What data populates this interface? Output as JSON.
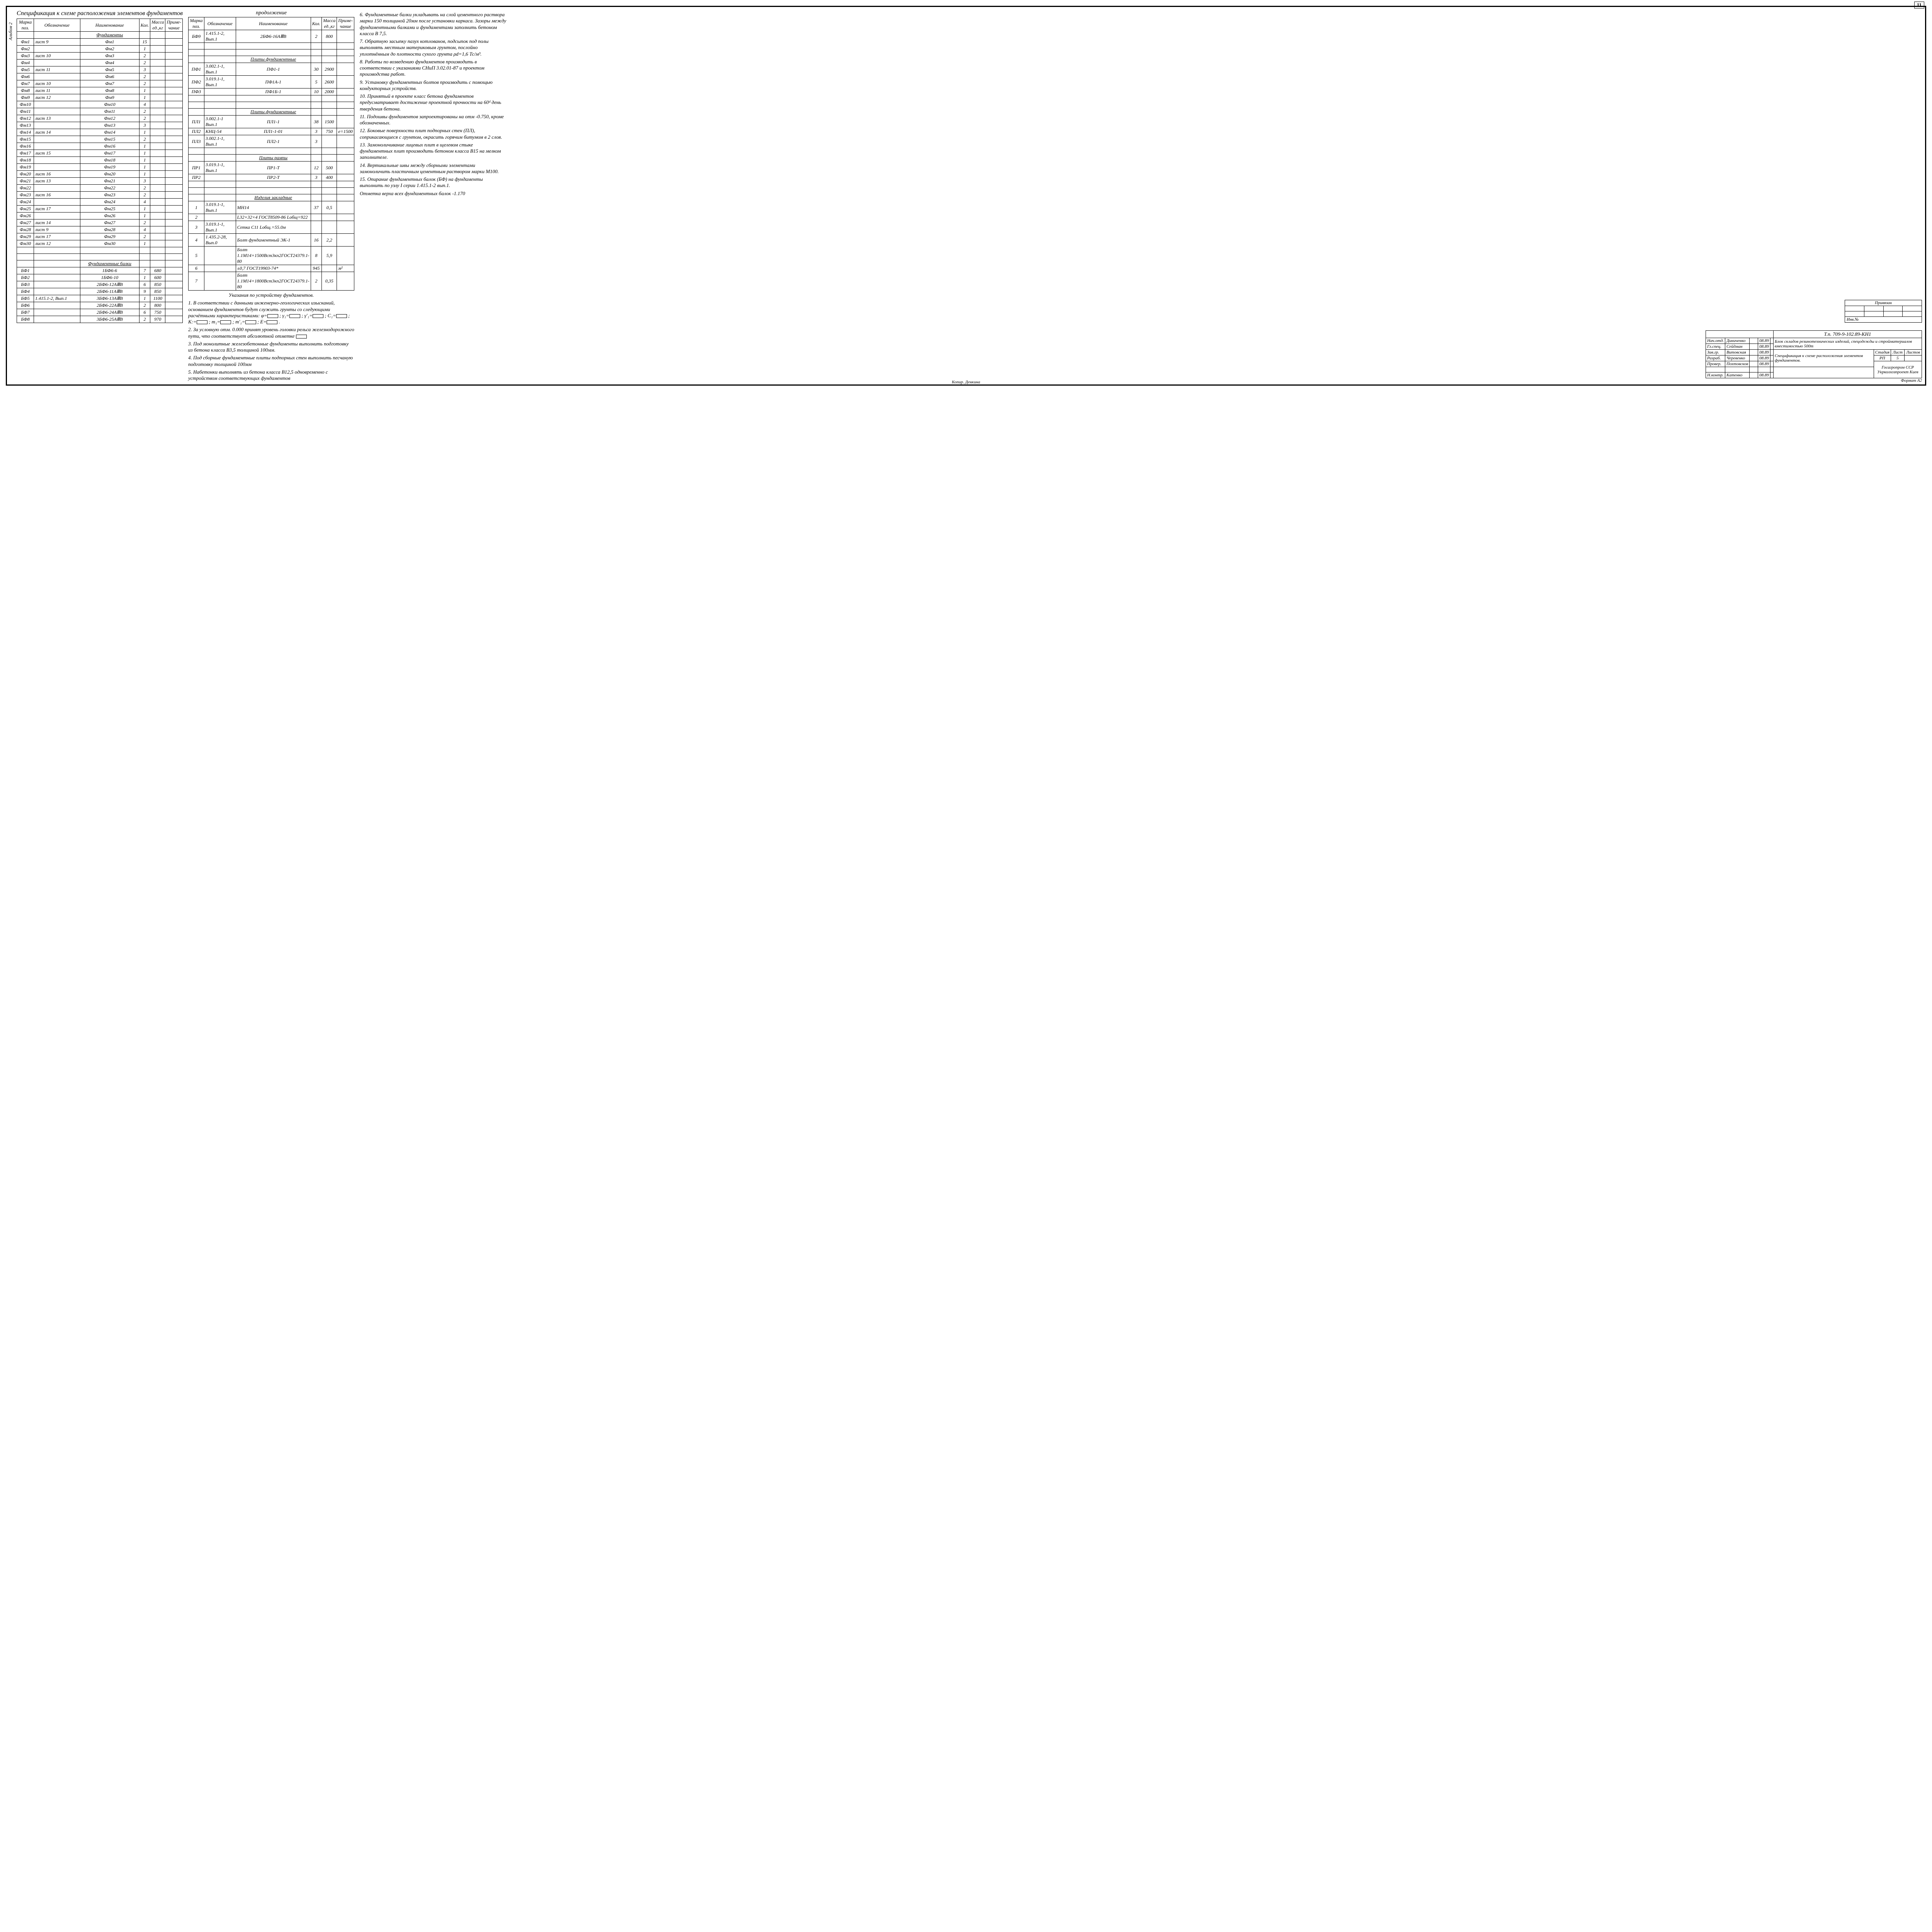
{
  "page_number": "11",
  "side_label": "Альбом 2",
  "main_title": "Спецификация к схеме расположения элементов фундаментов",
  "continuation": "продолжение",
  "headers": {
    "mark": "Марка поз.",
    "oboz": "Обозначение",
    "name": "Наименование",
    "kol": "Кол.",
    "massa": "Масса ед.,кг",
    "prim": "Приме-чание"
  },
  "sections": {
    "fund": "Фундаменты",
    "beams": "Фундаментные балки",
    "slabs_f": "Плиты фундаментные",
    "slabs_r": "Плиты рампы",
    "embed": "Изделия закладные"
  },
  "table1": [
    {
      "m": "Фм1",
      "o": "лист 9",
      "n": "Фм1",
      "k": "15"
    },
    {
      "m": "Фм2",
      "o": "",
      "n": "Фм2",
      "k": "1"
    },
    {
      "m": "Фм3",
      "o": "лист 10",
      "n": "Фм3",
      "k": "2"
    },
    {
      "m": "Фм4",
      "o": "",
      "n": "Фм4",
      "k": "2"
    },
    {
      "m": "Фм5",
      "o": "лист 11",
      "n": "Фм5",
      "k": "3"
    },
    {
      "m": "Фм6",
      "o": "",
      "n": "Фм6",
      "k": "2"
    },
    {
      "m": "Фм7",
      "o": "лист 10",
      "n": "Фм7",
      "k": "2"
    },
    {
      "m": "Фм8",
      "o": "лист 11",
      "n": "Фм8",
      "k": "1"
    },
    {
      "m": "Фм9",
      "o": "лист 12",
      "n": "Фм9",
      "k": "1"
    },
    {
      "m": "Фм10",
      "o": "",
      "n": "Фм10",
      "k": "4"
    },
    {
      "m": "Фм11",
      "o": "",
      "n": "Фм11",
      "k": "2"
    },
    {
      "m": "Фм12",
      "o": "лист 13",
      "n": "Фм12",
      "k": "2"
    },
    {
      "m": "Фм13",
      "o": "",
      "n": "Фм13",
      "k": "3"
    },
    {
      "m": "Фм14",
      "o": "лист 14",
      "n": "Фм14",
      "k": "1"
    },
    {
      "m": "Фм15",
      "o": "",
      "n": "Фм15",
      "k": "2"
    },
    {
      "m": "Фм16",
      "o": "",
      "n": "Фм16",
      "k": "1"
    },
    {
      "m": "Фм17",
      "o": "лист 15",
      "n": "Фм17",
      "k": "1"
    },
    {
      "m": "Фм18",
      "o": "",
      "n": "Фм18",
      "k": "1"
    },
    {
      "m": "Фм19",
      "o": "",
      "n": "Фм19",
      "k": "1"
    },
    {
      "m": "Фм20",
      "o": "лист 16",
      "n": "Фм20",
      "k": "1"
    },
    {
      "m": "Фм21",
      "o": "лист 13",
      "n": "Фм21",
      "k": "3"
    },
    {
      "m": "Фм22",
      "o": "",
      "n": "Фм22",
      "k": "2"
    },
    {
      "m": "Фм23",
      "o": "лист 16",
      "n": "Фм23",
      "k": "2"
    },
    {
      "m": "Фм24",
      "o": "",
      "n": "Фм24",
      "k": "4"
    },
    {
      "m": "Фм25",
      "o": "лист 17",
      "n": "Фм25",
      "k": "1"
    },
    {
      "m": "Фм26",
      "o": "",
      "n": "Фм26",
      "k": "1"
    },
    {
      "m": "Фм27",
      "o": "лист 14",
      "n": "Фм27",
      "k": "2"
    },
    {
      "m": "Фм28",
      "o": "лист 9",
      "n": "Фм28",
      "k": "4"
    },
    {
      "m": "Фм29",
      "o": "лист 17",
      "n": "Фм29",
      "k": "2"
    },
    {
      "m": "Фм30",
      "o": "лист 12",
      "n": "Фм30",
      "k": "1"
    }
  ],
  "table1_beams": [
    {
      "m": "БФ1",
      "o": "",
      "n": "1БФ6-6",
      "k": "7",
      "w": "680"
    },
    {
      "m": "БФ2",
      "o": "",
      "n": "1БФ6-10",
      "k": "1",
      "w": "600"
    },
    {
      "m": "БФ3",
      "o": "",
      "n": "2БФ6-12АⅢВ",
      "k": "6",
      "w": "850"
    },
    {
      "m": "БФ4",
      "o": "",
      "n": "2БФ6-11АⅢВ",
      "k": "9",
      "w": "850"
    },
    {
      "m": "БФ5",
      "o": "1.415.1-2, Вып.1",
      "n": "3БФ6-13АⅢВ",
      "k": "1",
      "w": "1100"
    },
    {
      "m": "БФ6",
      "o": "",
      "n": "2БФ6-22АⅢВ",
      "k": "2",
      "w": "800"
    },
    {
      "m": "БФ7",
      "o": "",
      "n": "2БФ6-24АⅢВ",
      "k": "6",
      "w": "750"
    },
    {
      "m": "БФ8",
      "o": "",
      "n": "3БФ6-25АⅢВ",
      "k": "2",
      "w": "970"
    }
  ],
  "table2_top": [
    {
      "m": "БФ9",
      "o": "1.415.1-2, Вып.1",
      "n": "2БФ6-16АⅢВ",
      "k": "2",
      "w": "800"
    }
  ],
  "table2_pf": [
    {
      "m": "ПФ1",
      "o": "3.002.1-1, Вып.1",
      "n": "ПФ1-1",
      "k": "30",
      "w": "2900"
    },
    {
      "m": "ПФ2",
      "o": "3.019.1-1, Вып.1",
      "n": "ПФ1А-1",
      "k": "5",
      "w": "2600"
    },
    {
      "m": "ПФ3",
      "o": "",
      "n": "ПФ1Б-1",
      "k": "10",
      "w": "2000"
    }
  ],
  "table2_pl": [
    {
      "m": "ПЛ1",
      "o": "3.002.1-1 Вып.1",
      "n": "ПЛ1-1",
      "k": "38",
      "w": "1500"
    },
    {
      "m": "ПЛ2",
      "o": "КНЦ-54",
      "n": "ПЛ1-1-01",
      "k": "3",
      "w": "750",
      "p": "e=1500"
    },
    {
      "m": "ПЛ3",
      "o": "3.002.1-1, Вып.1",
      "n": "ПЛ2-1",
      "k": "3",
      "w": ""
    }
  ],
  "table2_pr": [
    {
      "m": "ПР1",
      "o": "3.019.1-1, Вып.1",
      "n": "ПР1-Т",
      "k": "12",
      "w": "500"
    },
    {
      "m": "ПР2",
      "o": "",
      "n": "ПР2-Т",
      "k": "3",
      "w": "400"
    }
  ],
  "table2_emb": [
    {
      "m": "1",
      "o": "3.019.1-1, Вып.1",
      "n": "МН14",
      "k": "37",
      "w": "0,5"
    },
    {
      "m": "2",
      "o": "",
      "n": "L32×32×4 ГОСТ8509-86 Lобщ=922",
      "k": "",
      "w": ""
    },
    {
      "m": "3",
      "o": "3.019.1-1, Вып.1",
      "n": "Сетка С11 Lобщ.=55.0м",
      "k": "",
      "w": ""
    },
    {
      "m": "4",
      "o": "1.435.2-28, Вып.0",
      "n": "Болт фундаментный ЭК-1",
      "k": "16",
      "w": "2,2"
    },
    {
      "m": "5",
      "o": "",
      "n": "Болт 1.1М14×1500Вст3кп2ГОСТ24379.1-80",
      "k": "8",
      "w": "5,9"
    },
    {
      "m": "6",
      "o": "",
      "n": "±0,7 ГОСТ19903-74*",
      "k": "945",
      "w": "",
      "p": "м²"
    },
    {
      "m": "7",
      "o": "",
      "n": "Болт 1.1М14×1800Вст3кп2ГОСТ24379.1-80",
      "k": "2",
      "w": "0,35"
    }
  ],
  "notes_title": "Указания по устройству фундаментов.",
  "notes": [
    "1. В соответствии с данными инженерно-геологических изысканий, основанием фундаментов будут служить грунты со следующими расчётными характеристиками: φ=□ ; γ₁=□ ; γ'₁=□ ; C₁=□ ; K:=□ ; m₁=□ ; m'₁=□ ; E=□ .",
    "2. За условную отм. 0.000 принят уровень головки рельса железнодорожного пути, что соответствует абсолютной отметке □",
    "3. Под монолитные железобетонные фундаменты выполнить подготовку из бетона класса В3,5 толщиной 100мм.",
    "4. Под сборные фундаментные плиты подпорных стен выполнить песчаную подготовку толщиной 100мм",
    "5. Набетонки выполнять из бетона класса В12,5 одновременно с устройством соответствующих фундаментов"
  ],
  "notes_right": [
    "6. Фундаментные балки укладывать на слой цементного раствора марки 150 толщиной 20мм после установки каркаса. Зазоры между фундаментными балками и фундаментами заполнить бетоном класса В 7,5.",
    "7. Обратную засыпку пазух котлованов, подсыпок под полы выполнять местным материковым грунтом, послойно уплотнённым до плотности сухого грунта ρd=1,6 Тс/м³.",
    "8. Работы по возведению фундаментов производить в соответствии с указаниями СНиП 3.02.01-87 и проектом производства работ.",
    "9. Установку фундаментных болтов производить с помощью кондукторных устройств.",
    "10. Принятый в проекте класс бетона фундаментов предусматривает достижение проектной прочности на 60ᵈ день твердения бетона.",
    "11. Подошвы фундаментов запроектированы на отм -0.750, кроме обозначенных.",
    "12. Боковые поверхности плит подпорных стен (ПЛ), соприкасающиеся с грунтом, окрасить горячим битумом в 2 слоя.",
    "13. Замоноличивание лицевых плит в щелевом стыке фундаментных плит производить бетоном класса В15 на мелком заполнителе.",
    "14. Вертикальные швы между сборными элементами замоноличить пластичным цементным раствором марки М100.",
    "15. Опирание фундаментных балок (БФ) на фундаменты выполнить по узлу I серии 1.415.1-2 вып.1.",
    "Отметка верха всех фундаментных балок -1.170"
  ],
  "priv_label": "Привязан",
  "priv_inv": "Инв.№",
  "stamp": {
    "code": "Т.п. 709-9-102.89-КН1",
    "rows": [
      {
        "r": "Нач.отд.",
        "n": "Диниченко",
        "d": "08.89"
      },
      {
        "r": "Гл.спец.",
        "n": "Сейдман",
        "d": "08.89"
      },
      {
        "r": "Зав.гр.",
        "n": "Витовская",
        "d": "08.89"
      },
      {
        "r": "Разраб.",
        "n": "Черевенко",
        "d": "08.89"
      },
      {
        "r": "Провер.",
        "n": "Похтовсков",
        "d": "08.89"
      },
      {
        "r": "",
        "n": "",
        "d": ""
      },
      {
        "r": "Н.контр.",
        "n": "Катенко",
        "d": "08.89"
      }
    ],
    "obj_title": "Блок складов резинотехнических изделий, спецодежды и стройматериалов вместимостью 500т",
    "doc_title": "Спецификация к схеме расположения элементов фундаментов.",
    "stage_h": "Стадия",
    "sheet_h": "Лист",
    "sheets_h": "Листов",
    "stage": "РП",
    "sheet": "5",
    "sheets": "",
    "org1": "Госагропром ССР",
    "org2": "Укрколхозпроект Киев",
    "format": "Формат А2"
  },
  "kopir": "Копир. Денкина"
}
